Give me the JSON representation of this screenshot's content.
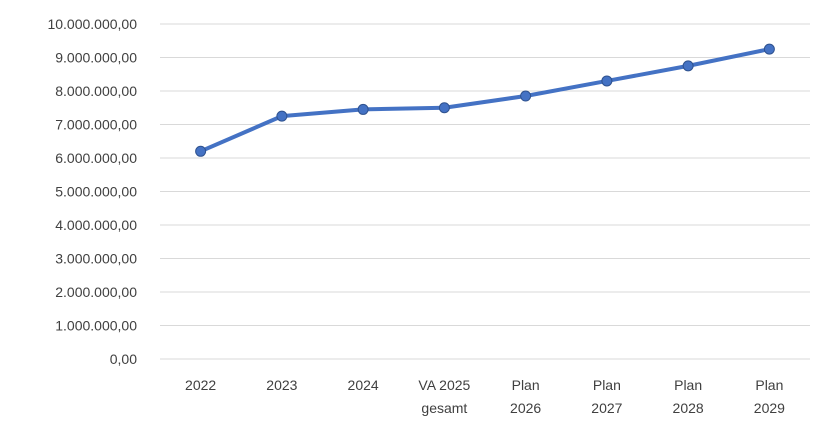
{
  "chart_data": {
    "type": "line",
    "categories": [
      [
        "2022"
      ],
      [
        "2023"
      ],
      [
        "2024"
      ],
      [
        "VA 2025",
        "gesamt"
      ],
      [
        "Plan",
        "2026"
      ],
      [
        "Plan",
        "2027"
      ],
      [
        "Plan",
        "2028"
      ],
      [
        "Plan",
        "2029"
      ]
    ],
    "series": [
      {
        "values": [
          6200000,
          7250000,
          7450000,
          7500000,
          7850000,
          8300000,
          8750000,
          9250000
        ],
        "color": "#4472c4"
      }
    ],
    "yticks": [
      "0,00",
      "1.000.000,00",
      "2.000.000,00",
      "3.000.000,00",
      "4.000.000,00",
      "5.000.000,00",
      "6.000.000,00",
      "7.000.000,00",
      "8.000.000,00",
      "9.000.000,00",
      "10.000.000,00"
    ],
    "ylim": [
      0,
      10000000
    ],
    "grid": true,
    "legend": "none"
  }
}
